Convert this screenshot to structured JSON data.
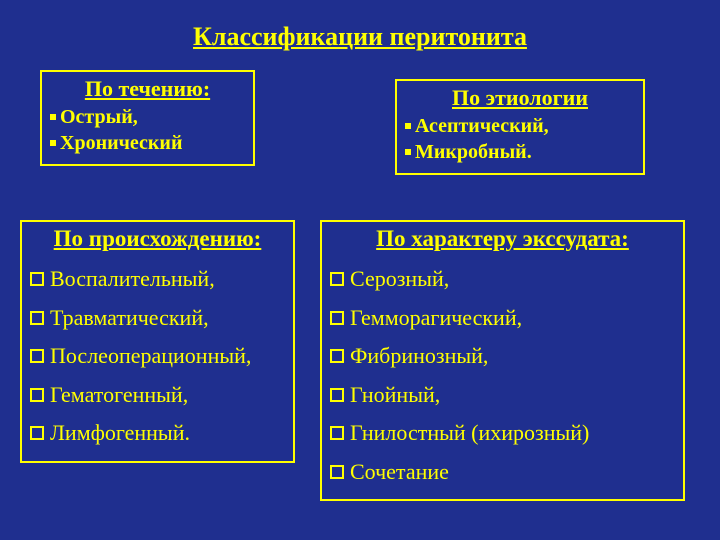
{
  "colors": {
    "background": "#1f2f8f",
    "text": "#ffff00",
    "border": "#ffff00"
  },
  "title": "Классификации перитонита",
  "boxes": {
    "box1": {
      "heading": "По течению:",
      "items": [
        "Острый,",
        "Хронический"
      ]
    },
    "box2": {
      "heading": "По этиологии",
      "items": [
        "Асептический,",
        "Микробный."
      ]
    },
    "box3": {
      "heading": "По происхождению:",
      "items": [
        "Воспалительный,",
        "Травматический,",
        "Послеоперационный,",
        "Гематогенный,",
        "Лимфогенный."
      ]
    },
    "box4": {
      "heading": "По характеру экссудата:",
      "items": [
        "Серозный,",
        "Гемморагический,",
        "Фибринозный,",
        "Гнойный,",
        "Гнилостный (ихирозный)",
        "Сочетание"
      ]
    }
  }
}
